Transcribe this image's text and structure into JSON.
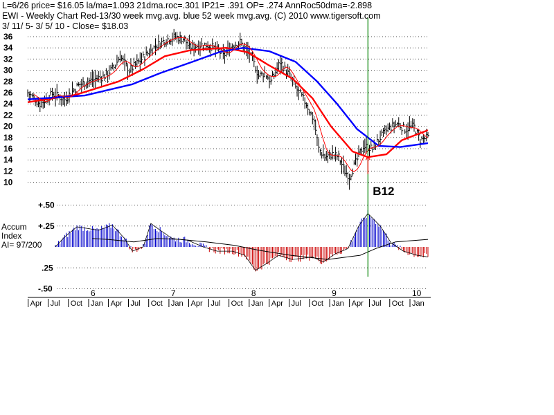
{
  "header": {
    "line1": "L=6/26  price= $16.05  la/ma=1.093 21dma.roc=.301 IP21= .391 OP= .274 AnnRoc50dma=-2.898",
    "line2": "EWI  - Weekly Chart  Red-13/30 week mvg.avg.  blue 52 week mvg.avg.  (C) 2010 www.tigersoft.com",
    "line3": " 3/ 11/ 5- 3/ 5/ 10 -     Close= $18.03"
  },
  "colors": {
    "background": "#ffffff",
    "bars": "#000000",
    "ma_fast": "#ff0000",
    "ma_slow": "#0000ff",
    "signal_line": "#008000",
    "accum_positive": "#0000cc",
    "accum_negative": "#cc0000",
    "grid": "#000000"
  },
  "chart_data": [
    {
      "type": "ohlc",
      "title": "EWI  - Weekly Chart",
      "ylim": [
        10,
        36
      ],
      "y_ticks": [
        "36",
        "34",
        "32",
        "30",
        "28",
        "26",
        "24",
        "22",
        "20",
        "18",
        "16",
        "14",
        "12",
        "10"
      ],
      "x_year_labels": [
        "6",
        "7",
        "8",
        "9",
        "10"
      ],
      "x_month_labels": [
        "Apr",
        "Jul",
        "Oct",
        "Jan",
        "Apr",
        "Jul",
        "Oct",
        "Jan",
        "Apr",
        "Jul",
        "Oct",
        "Jan",
        "Apr",
        "Jul",
        "Oct",
        "Jan",
        "Apr",
        "Jul",
        "Oct",
        "Jan"
      ],
      "x_start": "2005-03-11",
      "x_end": "2010-03-05",
      "price_path": [
        [
          "2005-03-11",
          26.0
        ],
        [
          "2005-04-08",
          25.0
        ],
        [
          "2005-05-06",
          24.0
        ],
        [
          "2005-06-03",
          24.8
        ],
        [
          "2005-07-01",
          25.8
        ],
        [
          "2005-08-26",
          24.8
        ],
        [
          "2005-10-07",
          26.5
        ],
        [
          "2005-11-04",
          27.5
        ],
        [
          "2005-12-30",
          28.3
        ],
        [
          "2006-02-24",
          29.0
        ],
        [
          "2006-04-07",
          30.5
        ],
        [
          "2006-05-05",
          32.5
        ],
        [
          "2006-06-16",
          30.0
        ],
        [
          "2006-07-28",
          31.5
        ],
        [
          "2006-09-08",
          33.0
        ],
        [
          "2006-10-20",
          34.5
        ],
        [
          "2006-12-01",
          35.5
        ],
        [
          "2007-01-12",
          36.0
        ],
        [
          "2007-02-23",
          35.5
        ],
        [
          "2007-03-16",
          34.0
        ],
        [
          "2007-04-27",
          34.5
        ],
        [
          "2007-06-08",
          34.5
        ],
        [
          "2007-07-27",
          33.5
        ],
        [
          "2007-08-17",
          32.5
        ],
        [
          "2007-09-28",
          34.5
        ],
        [
          "2007-11-02",
          35.0
        ],
        [
          "2007-12-14",
          33.0
        ],
        [
          "2008-01-11",
          30.5
        ],
        [
          "2008-01-25",
          29.0
        ],
        [
          "2008-02-22",
          29.5
        ],
        [
          "2008-03-21",
          28.0
        ],
        [
          "2008-05-02",
          31.5
        ],
        [
          "2008-06-13",
          29.0
        ],
        [
          "2008-07-18",
          26.5
        ],
        [
          "2008-08-29",
          24.0
        ],
        [
          "2008-10-03",
          21.0
        ],
        [
          "2008-10-24",
          16.0
        ],
        [
          "2008-11-21",
          14.5
        ],
        [
          "2008-12-26",
          15.0
        ],
        [
          "2009-01-23",
          14.5
        ],
        [
          "2009-02-20",
          12.0
        ],
        [
          "2009-03-13",
          11.0
        ],
        [
          "2009-04-10",
          13.5
        ],
        [
          "2009-05-15",
          16.5
        ],
        [
          "2009-06-26",
          16.0
        ],
        [
          "2009-07-31",
          18.0
        ],
        [
          "2009-09-04",
          19.5
        ],
        [
          "2009-10-16",
          20.5
        ],
        [
          "2009-11-20",
          19.5
        ],
        [
          "2009-12-31",
          20.0
        ],
        [
          "2010-01-29",
          17.5
        ],
        [
          "2010-03-05",
          18.0
        ]
      ],
      "ma_13_30": [
        [
          "2005-03-11",
          24.3
        ],
        [
          "2005-08-05",
          25.2
        ],
        [
          "2005-10-14",
          25.6
        ],
        [
          "2006-04-28",
          28.0
        ],
        [
          "2006-08-18",
          30.2
        ],
        [
          "2006-11-24",
          32.5
        ],
        [
          "2007-03-23",
          33.6
        ],
        [
          "2007-08-31",
          34.0
        ],
        [
          "2007-12-07",
          33.2
        ],
        [
          "2008-03-07",
          31.0
        ],
        [
          "2008-06-27",
          28.5
        ],
        [
          "2008-09-26",
          25.0
        ],
        [
          "2008-12-19",
          20.0
        ],
        [
          "2009-03-27",
          15.5
        ],
        [
          "2009-06-05",
          14.5
        ],
        [
          "2009-08-28",
          15.0
        ],
        [
          "2009-11-06",
          17.5
        ],
        [
          "2010-03-05",
          19.3
        ]
      ],
      "ma_52": [
        [
          "2005-03-11",
          24.8
        ],
        [
          "2005-08-05",
          25.2
        ],
        [
          "2005-11-25",
          25.5
        ],
        [
          "2006-06-30",
          27.5
        ],
        [
          "2006-11-03",
          29.5
        ],
        [
          "2007-03-30",
          31.5
        ],
        [
          "2007-08-03",
          33.3
        ],
        [
          "2007-11-16",
          34.0
        ],
        [
          "2008-03-14",
          33.4
        ],
        [
          "2008-07-11",
          31.5
        ],
        [
          "2008-10-17",
          28.0
        ],
        [
          "2009-01-16",
          24.0
        ],
        [
          "2009-04-17",
          19.5
        ],
        [
          "2009-07-24",
          16.5
        ],
        [
          "2009-10-30",
          16.3
        ],
        [
          "2010-03-05",
          17.0
        ]
      ],
      "signal": {
        "date": "2009-06-05",
        "label": "B12"
      }
    },
    {
      "type": "bar",
      "title": "Accum Index",
      "ylim": [
        -0.5,
        0.5
      ],
      "y_ticks": [
        "+.50",
        "+.25",
        ".25",
        "-.50"
      ],
      "side_labels": [
        "Accum",
        "Index",
        "AI= 97/200"
      ],
      "ai_path": [
        [
          "2005-03-11",
          0.0
        ],
        [
          "2005-07-15",
          0.0
        ],
        [
          "2005-08-26",
          0.12
        ],
        [
          "2005-10-21",
          0.24
        ],
        [
          "2006-01-27",
          0.2
        ],
        [
          "2006-03-31",
          0.26
        ],
        [
          "2006-05-26",
          0.1
        ],
        [
          "2006-06-30",
          -0.05
        ],
        [
          "2006-08-18",
          0.0
        ],
        [
          "2006-09-22",
          0.28
        ],
        [
          "2006-11-03",
          0.2
        ],
        [
          "2006-12-29",
          0.1
        ],
        [
          "2007-03-09",
          0.08
        ],
        [
          "2007-05-18",
          0.0
        ],
        [
          "2007-07-20",
          -0.05
        ],
        [
          "2007-09-28",
          -0.05
        ],
        [
          "2007-11-23",
          -0.1
        ],
        [
          "2008-01-11",
          -0.28
        ],
        [
          "2008-02-29",
          -0.2
        ],
        [
          "2008-04-25",
          -0.1
        ],
        [
          "2008-06-27",
          -0.15
        ],
        [
          "2008-09-26",
          -0.12
        ],
        [
          "2008-11-14",
          -0.18
        ],
        [
          "2009-01-09",
          -0.08
        ],
        [
          "2009-03-06",
          -0.02
        ],
        [
          "2009-04-24",
          0.25
        ],
        [
          "2009-06-05",
          0.4
        ],
        [
          "2009-07-31",
          0.25
        ],
        [
          "2009-09-18",
          0.05
        ],
        [
          "2009-11-13",
          -0.05
        ],
        [
          "2010-01-15",
          -0.1
        ],
        [
          "2010-03-05",
          -0.12
        ]
      ],
      "ai_ma": [
        [
          "2005-12-30",
          0.1
        ],
        [
          "2006-03-10",
          0.09
        ],
        [
          "2006-07-07",
          0.06
        ],
        [
          "2006-10-20",
          0.1
        ],
        [
          "2007-02-02",
          0.09
        ],
        [
          "2007-06-01",
          0.06
        ],
        [
          "2007-10-05",
          0.02
        ],
        [
          "2008-01-25",
          -0.04
        ],
        [
          "2008-06-20",
          -0.1
        ],
        [
          "2008-12-05",
          -0.15
        ],
        [
          "2009-05-01",
          -0.1
        ],
        [
          "2009-07-10",
          -0.02
        ],
        [
          "2009-10-09",
          0.06
        ],
        [
          "2010-03-05",
          0.09
        ]
      ]
    }
  ]
}
